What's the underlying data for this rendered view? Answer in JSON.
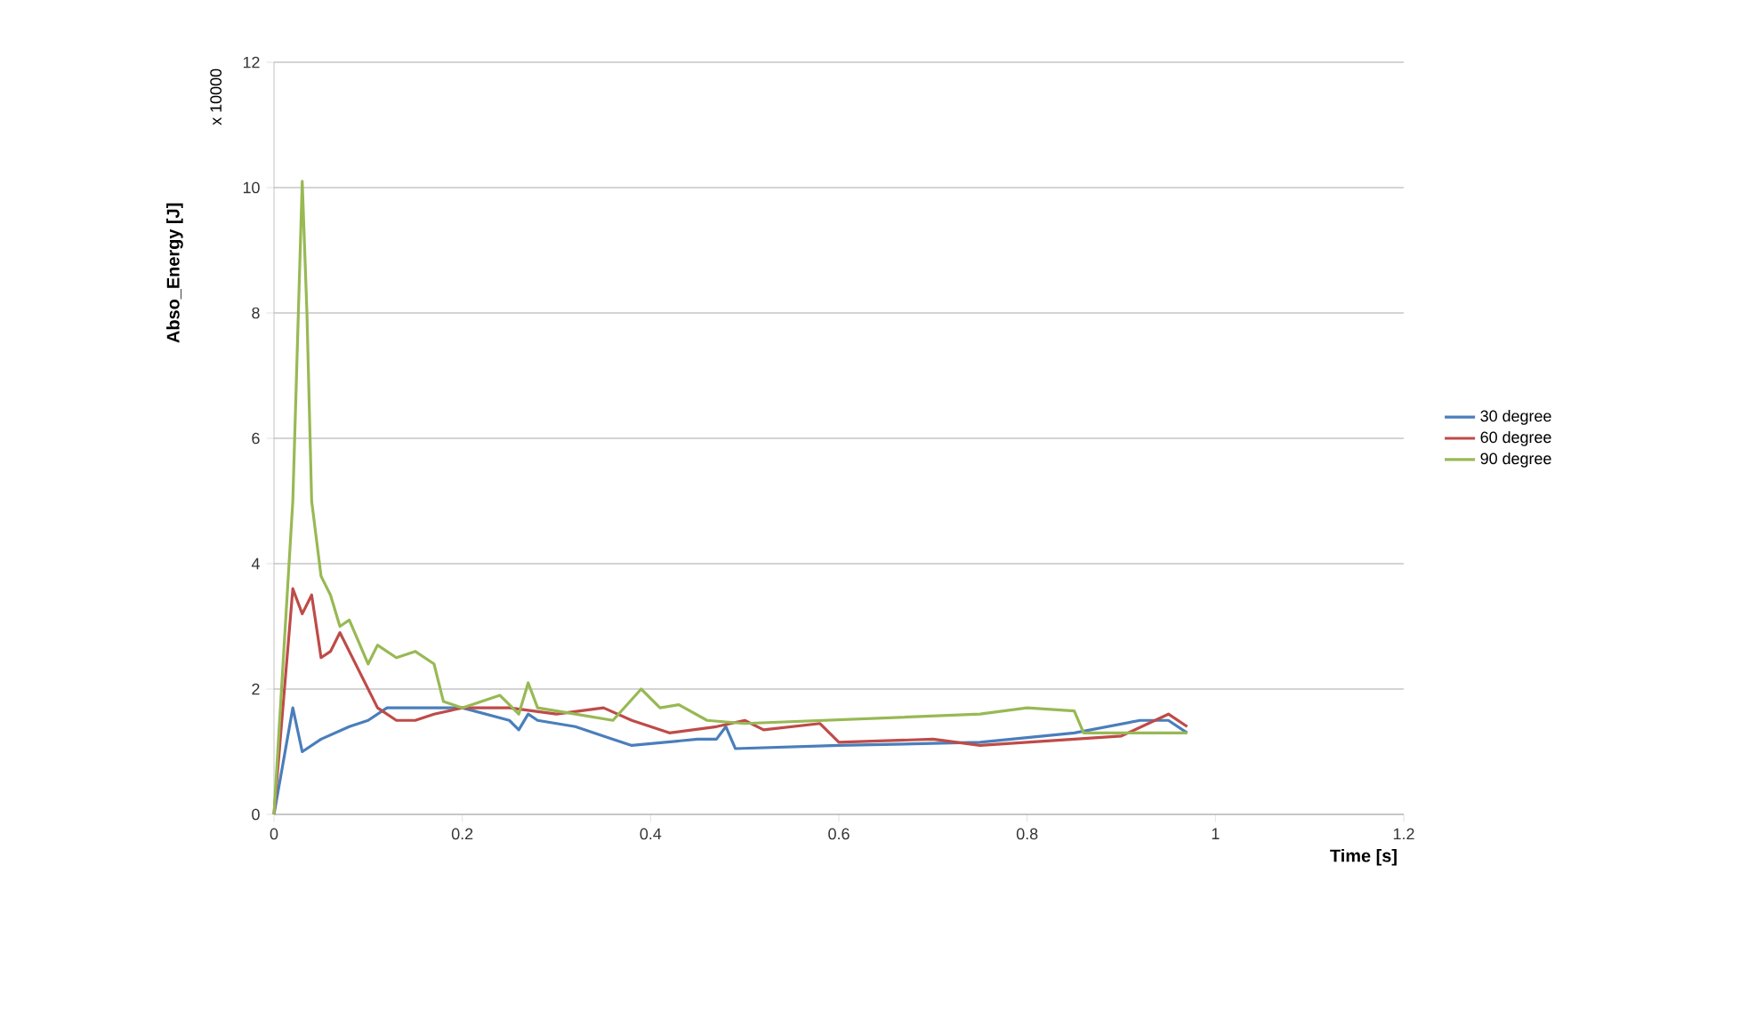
{
  "chart_data": {
    "type": "line",
    "ylabel": "Abso_Energy [J]",
    "xlabel": "Time [s]",
    "annotations": [
      "x 10000"
    ],
    "xlim": [
      0,
      1.2
    ],
    "xticks": [
      0,
      0.2,
      0.4,
      0.6,
      0.8,
      1,
      1.2
    ],
    "ylim": [
      0,
      12
    ],
    "yticks": [
      0,
      2,
      4,
      6,
      8,
      10,
      12
    ],
    "grid": "y",
    "legend": "right",
    "marker": "none",
    "line_style": "solid",
    "series": [
      {
        "name": "30 degree",
        "color": "#4a7ebb",
        "x": [
          0,
          0.02,
          0.03,
          0.05,
          0.08,
          0.1,
          0.12,
          0.2,
          0.25,
          0.26,
          0.27,
          0.28,
          0.32,
          0.36,
          0.38,
          0.45,
          0.47,
          0.48,
          0.49,
          0.6,
          0.75,
          0.85,
          0.92,
          0.95,
          0.97
        ],
        "values": [
          0,
          1.7,
          1.0,
          1.2,
          1.4,
          1.5,
          1.7,
          1.7,
          1.5,
          1.35,
          1.6,
          1.5,
          1.4,
          1.2,
          1.1,
          1.2,
          1.2,
          1.4,
          1.05,
          1.1,
          1.15,
          1.3,
          1.5,
          1.5,
          1.3
        ]
      },
      {
        "name": "60 degree",
        "color": "#be4b48",
        "x": [
          0,
          0.02,
          0.03,
          0.04,
          0.05,
          0.06,
          0.07,
          0.09,
          0.11,
          0.13,
          0.15,
          0.17,
          0.2,
          0.25,
          0.3,
          0.35,
          0.38,
          0.42,
          0.47,
          0.5,
          0.52,
          0.58,
          0.6,
          0.7,
          0.75,
          0.8,
          0.9,
          0.95,
          0.97
        ],
        "values": [
          0,
          3.6,
          3.2,
          3.5,
          2.5,
          2.6,
          2.9,
          2.3,
          1.7,
          1.5,
          1.5,
          1.6,
          1.7,
          1.7,
          1.6,
          1.7,
          1.5,
          1.3,
          1.4,
          1.5,
          1.35,
          1.45,
          1.15,
          1.2,
          1.1,
          1.15,
          1.25,
          1.6,
          1.4
        ]
      },
      {
        "name": "90 degree",
        "color": "#98b954",
        "x": [
          0,
          0.02,
          0.03,
          0.035,
          0.04,
          0.05,
          0.06,
          0.07,
          0.08,
          0.1,
          0.11,
          0.13,
          0.15,
          0.17,
          0.18,
          0.2,
          0.24,
          0.26,
          0.27,
          0.28,
          0.32,
          0.36,
          0.39,
          0.41,
          0.43,
          0.46,
          0.5,
          0.75,
          0.8,
          0.85,
          0.86,
          0.97
        ],
        "values": [
          0,
          5,
          10.1,
          8,
          5,
          3.8,
          3.5,
          3.0,
          3.1,
          2.4,
          2.7,
          2.5,
          2.6,
          2.4,
          1.8,
          1.7,
          1.9,
          1.6,
          2.1,
          1.7,
          1.6,
          1.5,
          2.0,
          1.7,
          1.75,
          1.5,
          1.45,
          1.6,
          1.7,
          1.65,
          1.3,
          1.3
        ]
      }
    ]
  }
}
